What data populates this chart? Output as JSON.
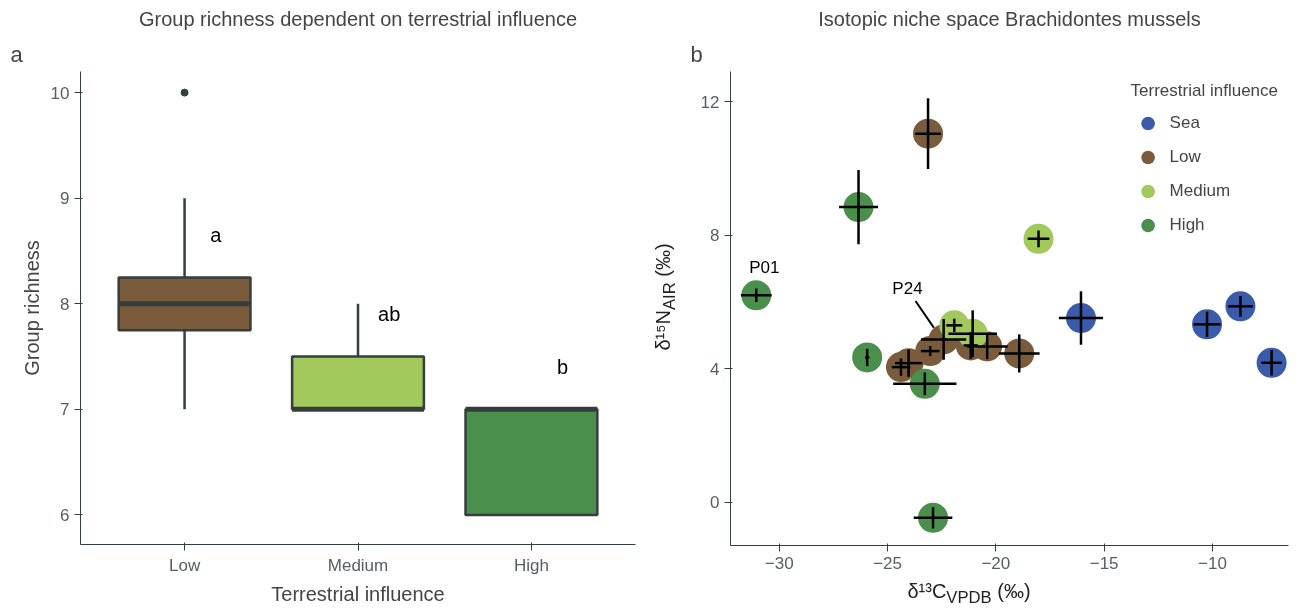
{
  "chart_data": [
    {
      "type": "box",
      "title": "Group richness dependent on terrestrial influence",
      "xlabel": "Terrestrial influence",
      "ylabel": "Group richness",
      "categories": [
        "Low",
        "Medium",
        "High"
      ],
      "colors": [
        "#7a5c3c",
        "#a2c95c",
        "#4a904c"
      ],
      "boxes": [
        {
          "low": 7,
          "q1": 7.75,
          "median": 8,
          "q3": 8.25,
          "high": 9,
          "outliers": [
            10
          ]
        },
        {
          "low": 7,
          "q1": 7,
          "median": 7,
          "q3": 7.5,
          "high": 8
        },
        {
          "low": 6,
          "q1": 6,
          "median": 7,
          "q3": 7,
          "high": 7
        }
      ],
      "ylim": [
        5.72,
        10.2
      ],
      "yticks": [
        6,
        7,
        8,
        9,
        10
      ],
      "grid": false,
      "annotations": [
        "a",
        "a",
        "ab",
        "b"
      ]
    },
    {
      "type": "scatter",
      "title": "Isotopic niche space Brachidontes mussels",
      "xlabel": "δ¹³C$_{VPDB}$ (‰)",
      "ylabel": "δ¹⁵N$_{AIR}$ (‰)",
      "legend_title": "Terrestrial influence",
      "legend": "top right",
      "marker": "circle",
      "grid": false,
      "xlim": [
        -32.25,
        -6.49
      ],
      "xticks": [
        -30,
        -25,
        -20,
        -15,
        -10
      ],
      "ylim": [
        -1.29,
        12.9
      ],
      "yticks": [
        0,
        4,
        8,
        12
      ],
      "series": [
        {
          "name": "Sea",
          "color": "#3a5ba9",
          "x": [
            -16.07,
            -10.25,
            -8.71,
            -7.27
          ],
          "values": [
            5.52,
            5.33,
            5.87,
            4.18
          ],
          "xerrors": [
            1.02,
            0.62,
            0.57,
            0.47
          ],
          "errors": [
            0.8,
            0.38,
            0.31,
            0.38
          ]
        },
        {
          "name": "Low",
          "color": "#7a5c3c",
          "x": [
            -23.13,
            -24.38,
            -24.03,
            -23.03,
            -22.41,
            -21.16,
            -20.4,
            -18.92
          ],
          "values": [
            11.04,
            4.05,
            4.17,
            4.53,
            4.88,
            4.7,
            4.67,
            4.46
          ],
          "xerrors": [
            0.59,
            0.43,
            0.63,
            0.43,
            1.04,
            0.33,
            0.95,
            0.94
          ],
          "errors": [
            1.06,
            0.26,
            0.41,
            0.15,
            0.61,
            0.4,
            0.38,
            0.57
          ]
        },
        {
          "name": "Medium",
          "color": "#a2c95c",
          "x": [
            -18.03,
            -21.92,
            -21.07
          ],
          "values": [
            7.89,
            5.3,
            5.05
          ],
          "xerrors": [
            0.5,
            0.37,
            1.12
          ],
          "errors": [
            0.25,
            0.2,
            0.7
          ]
        },
        {
          "name": "High",
          "color": "#4a904c",
          "x": [
            -31.06,
            -26.34,
            -25.94,
            -23.28,
            -22.9
          ],
          "values": [
            6.2,
            8.84,
            4.34,
            3.55,
            -0.46
          ],
          "xerrors": [
            0.71,
            0.9,
            0.1,
            1.46,
            0.89
          ],
          "errors": [
            0.2,
            1.11,
            0.26,
            0.34,
            0.32
          ]
        }
      ],
      "annotations": [
        "b",
        {
          "text": "P01",
          "x": -31.06,
          "y": 6.2
        },
        {
          "text": "P24",
          "x": -22.41,
          "y": 4.88
        }
      ]
    }
  ]
}
